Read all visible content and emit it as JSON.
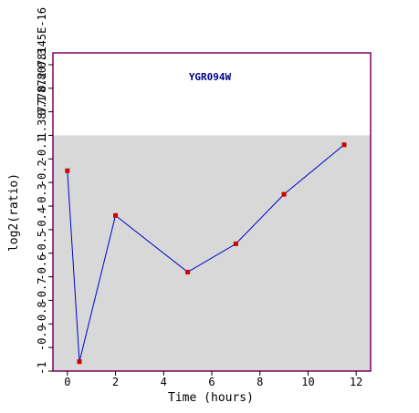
{
  "chart_data": {
    "type": "line",
    "title": "YGR094W",
    "xlabel": "Time (hours)",
    "ylabel": "log2(ratio)",
    "xlim": [
      -0.6,
      12.6
    ],
    "ylim": [
      -1.0,
      0.35
    ],
    "xticks": [
      {
        "v": 0,
        "label": "0"
      },
      {
        "v": 2,
        "label": "2"
      },
      {
        "v": 4,
        "label": "4"
      },
      {
        "v": 6,
        "label": "6"
      },
      {
        "v": 8,
        "label": "8"
      },
      {
        "v": 10,
        "label": "10"
      },
      {
        "v": 12,
        "label": "12"
      }
    ],
    "yticks": [
      {
        "v": -1.0,
        "label": "-1"
      },
      {
        "v": -0.9,
        "label": "-0.9"
      },
      {
        "v": -0.8,
        "label": "-0.8"
      },
      {
        "v": -0.7,
        "label": "-0.7"
      },
      {
        "v": -0.6,
        "label": "-0.6"
      },
      {
        "v": -0.5,
        "label": "-0.5"
      },
      {
        "v": -0.4,
        "label": "-0.4"
      },
      {
        "v": -0.3,
        "label": "-0.3"
      },
      {
        "v": -0.2,
        "label": "-0.2"
      },
      {
        "v": -0.1,
        "label": "-0.1"
      },
      {
        "v": 0.0,
        "label": "1.38777878078145E-16"
      },
      {
        "v": 0.1,
        "label": "0.1"
      },
      {
        "v": 0.2,
        "label": "0.2"
      },
      {
        "v": 0.3,
        "label": "0.3"
      }
    ],
    "shaded_region": {
      "from": -1.0,
      "to": 0.0
    },
    "series": [
      {
        "x": [
          0,
          0.5,
          2,
          5,
          7,
          9,
          11.5
        ],
        "y": [
          -0.15,
          -0.96,
          -0.34,
          -0.58,
          -0.46,
          -0.25,
          -0.04
        ]
      }
    ],
    "colors": {
      "line": "#0000cc",
      "marker": "#cc0000",
      "frame": "#800060",
      "shade": "#d8d8d8",
      "title": "#00008b",
      "text": "#000000"
    }
  }
}
